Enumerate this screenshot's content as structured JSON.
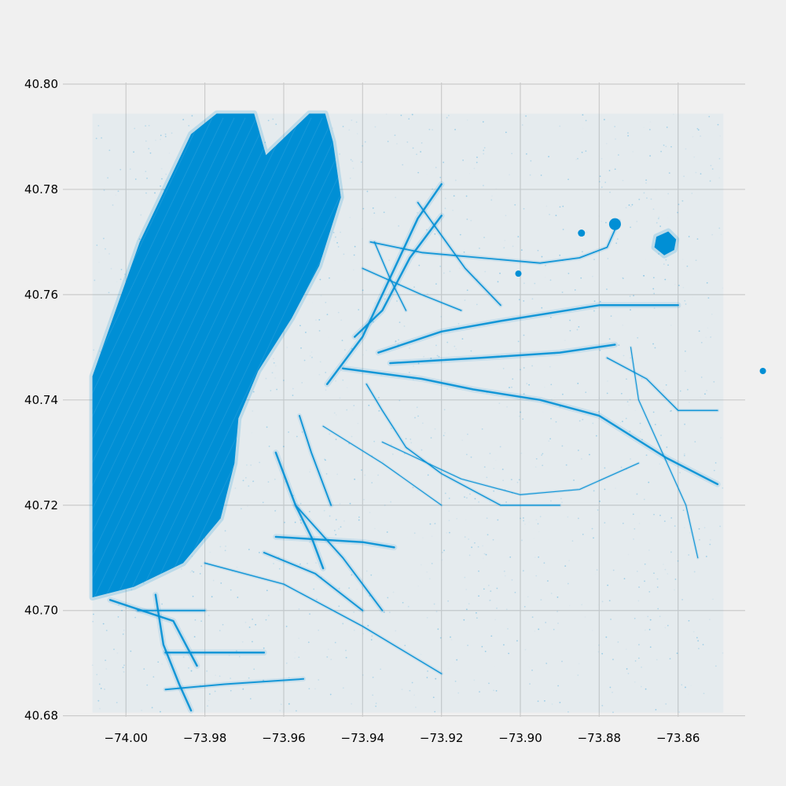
{
  "chart_data": {
    "type": "scatter",
    "title": "",
    "xlabel": "",
    "ylabel": "",
    "xlim": [
      -74.0085,
      -73.8485
    ],
    "ylim": [
      40.6806,
      40.7944
    ],
    "axes_xlim": [
      -74.016,
      -73.843
    ],
    "axes_ylim": [
      40.6798,
      40.8003
    ],
    "grid": true,
    "legend": "none",
    "point_color": "#008fd5",
    "background": "#f0f0f0",
    "grid_color": "#cbcbcb",
    "xticks": [
      {
        "value": -74.0,
        "label": "−74.00"
      },
      {
        "value": -73.98,
        "label": "−73.98"
      },
      {
        "value": -73.96,
        "label": "−73.96"
      },
      {
        "value": -73.94,
        "label": "−73.94"
      },
      {
        "value": -73.92,
        "label": "−73.92"
      },
      {
        "value": -73.9,
        "label": "−73.90"
      },
      {
        "value": -73.88,
        "label": "−73.88"
      },
      {
        "value": -73.86,
        "label": "−73.86"
      }
    ],
    "yticks": [
      {
        "value": 40.68,
        "label": "40.68"
      },
      {
        "value": 40.7,
        "label": "40.70"
      },
      {
        "value": 40.72,
        "label": "40.72"
      },
      {
        "value": 40.74,
        "label": "40.74"
      },
      {
        "value": 40.76,
        "label": "40.76"
      },
      {
        "value": 40.78,
        "label": "40.78"
      },
      {
        "value": 40.8,
        "label": "40.80"
      }
    ],
    "dense_regions": [
      {
        "name": "manhattan",
        "polygon": [
          [
            -74.0085,
            40.7445
          ],
          [
            -73.9965,
            40.77
          ],
          [
            -73.9835,
            40.7905
          ],
          [
            -73.977,
            40.7944
          ],
          [
            -73.9675,
            40.7944
          ],
          [
            -73.9645,
            40.7865
          ],
          [
            -73.9535,
            40.7944
          ],
          [
            -73.9495,
            40.7944
          ],
          [
            -73.9475,
            40.789
          ],
          [
            -73.9455,
            40.7785
          ],
          [
            -73.951,
            40.7655
          ],
          [
            -73.958,
            40.7555
          ],
          [
            -73.9665,
            40.7455
          ],
          [
            -73.9715,
            40.7365
          ],
          [
            -73.9725,
            40.728
          ],
          [
            -73.976,
            40.7175
          ],
          [
            -73.9855,
            40.709
          ],
          [
            -73.998,
            40.7045
          ],
          [
            -74.0085,
            40.7025
          ]
        ]
      },
      {
        "name": "laguardia",
        "polygon": [
          [
            -73.8655,
            40.771
          ],
          [
            -73.8625,
            40.772
          ],
          [
            -73.8605,
            40.7705
          ],
          [
            -73.861,
            40.7685
          ],
          [
            -73.8635,
            40.7675
          ],
          [
            -73.866,
            40.769
          ]
        ]
      }
    ],
    "lines": [
      {
        "points": [
          [
            -74.004,
            40.702
          ],
          [
            -73.996,
            40.7
          ],
          [
            -73.988,
            40.698
          ],
          [
            -73.982,
            40.6895
          ]
        ],
        "w": 2.5
      },
      {
        "points": [
          [
            -73.9925,
            40.703
          ],
          [
            -73.9905,
            40.6935
          ],
          [
            -73.9865,
            40.686
          ],
          [
            -73.9835,
            40.681
          ]
        ],
        "w": 2.5
      },
      {
        "points": [
          [
            -73.99,
            40.692
          ],
          [
            -73.978,
            40.692
          ],
          [
            -73.965,
            40.692
          ]
        ],
        "w": 2.5
      },
      {
        "points": [
          [
            -73.99,
            40.685
          ],
          [
            -73.975,
            40.686
          ],
          [
            -73.955,
            40.687
          ]
        ],
        "w": 2
      },
      {
        "points": [
          [
            -73.997,
            40.7
          ],
          [
            -73.98,
            40.7
          ]
        ],
        "w": 2
      },
      {
        "points": [
          [
            -73.98,
            40.709
          ],
          [
            -73.96,
            40.705
          ],
          [
            -73.94,
            40.697
          ],
          [
            -73.92,
            40.688
          ]
        ],
        "w": 1.5
      },
      {
        "points": [
          [
            -73.962,
            40.73
          ],
          [
            -73.957,
            40.72
          ],
          [
            -73.953,
            40.714
          ],
          [
            -73.95,
            40.708
          ]
        ],
        "w": 2.5
      },
      {
        "points": [
          [
            -73.962,
            40.714
          ],
          [
            -73.94,
            40.713
          ],
          [
            -73.932,
            40.712
          ]
        ],
        "w": 2.5
      },
      {
        "points": [
          [
            -73.957,
            40.72
          ],
          [
            -73.945,
            40.71
          ],
          [
            -73.935,
            40.7
          ]
        ],
        "w": 2
      },
      {
        "points": [
          [
            -73.965,
            40.711
          ],
          [
            -73.952,
            40.707
          ],
          [
            -73.94,
            40.7
          ]
        ],
        "w": 2
      },
      {
        "points": [
          [
            -73.956,
            40.737
          ],
          [
            -73.953,
            40.73
          ],
          [
            -73.948,
            40.72
          ]
        ],
        "w": 2
      },
      {
        "points": [
          [
            -73.942,
            40.752
          ],
          [
            -73.935,
            40.757
          ],
          [
            -73.928,
            40.767
          ],
          [
            -73.92,
            40.775
          ]
        ],
        "w": 2.5
      },
      {
        "points": [
          [
            -73.949,
            40.743
          ],
          [
            -73.94,
            40.752
          ],
          [
            -73.926,
            40.7745
          ],
          [
            -73.92,
            40.781
          ]
        ],
        "w": 2.5
      },
      {
        "points": [
          [
            -73.939,
            40.743
          ],
          [
            -73.935,
            40.738
          ],
          [
            -73.929,
            40.731
          ],
          [
            -73.92,
            40.726
          ],
          [
            -73.905,
            40.72
          ],
          [
            -73.89,
            40.72
          ]
        ],
        "w": 1.5
      },
      {
        "points": [
          [
            -73.936,
            40.749
          ],
          [
            -73.92,
            40.753
          ],
          [
            -73.905,
            40.755
          ],
          [
            -73.88,
            40.758
          ],
          [
            -73.86,
            40.758
          ]
        ],
        "w": 2.5
      },
      {
        "points": [
          [
            -73.945,
            40.746
          ],
          [
            -73.925,
            40.744
          ],
          [
            -73.912,
            40.742
          ],
          [
            -73.895,
            40.74
          ],
          [
            -73.88,
            40.737
          ],
          [
            -73.863,
            40.729
          ],
          [
            -73.85,
            40.724
          ]
        ],
        "w": 2.5
      },
      {
        "points": [
          [
            -73.933,
            40.747
          ],
          [
            -73.91,
            40.748
          ],
          [
            -73.89,
            40.749
          ],
          [
            -73.876,
            40.7505
          ]
        ],
        "w": 2.5
      },
      {
        "points": [
          [
            -73.938,
            40.77
          ],
          [
            -73.925,
            40.768
          ],
          [
            -73.91,
            40.767
          ],
          [
            -73.895,
            40.766
          ],
          [
            -73.885,
            40.767
          ],
          [
            -73.878,
            40.769
          ],
          [
            -73.875,
            40.774
          ]
        ],
        "w": 1.8
      },
      {
        "points": [
          [
            -73.926,
            40.7775
          ],
          [
            -73.914,
            40.765
          ],
          [
            -73.905,
            40.758
          ]
        ],
        "w": 1.8
      },
      {
        "points": [
          [
            -73.878,
            40.748
          ],
          [
            -73.868,
            40.744
          ],
          [
            -73.86,
            40.738
          ],
          [
            -73.85,
            40.738
          ]
        ],
        "w": 1.5
      },
      {
        "points": [
          [
            -73.872,
            40.75
          ],
          [
            -73.87,
            40.74
          ],
          [
            -73.864,
            40.73
          ],
          [
            -73.858,
            40.72
          ],
          [
            -73.855,
            40.71
          ]
        ],
        "w": 1.2
      },
      {
        "points": [
          [
            -73.937,
            40.77
          ],
          [
            -73.933,
            40.763
          ],
          [
            -73.929,
            40.757
          ]
        ],
        "w": 1.5
      },
      {
        "points": [
          [
            -73.95,
            40.735
          ],
          [
            -73.935,
            40.728
          ],
          [
            -73.92,
            40.72
          ]
        ],
        "w": 1.2
      },
      {
        "points": [
          [
            -73.935,
            40.732
          ],
          [
            -73.915,
            40.725
          ],
          [
            -73.9,
            40.722
          ],
          [
            -73.885,
            40.723
          ],
          [
            -73.87,
            40.728
          ]
        ],
        "w": 1.2
      },
      {
        "points": [
          [
            -73.94,
            40.765
          ],
          [
            -73.925,
            40.76
          ],
          [
            -73.915,
            40.757
          ]
        ],
        "w": 1.5
      }
    ],
    "blobs": [
      {
        "center": [
          -73.8845,
          40.7717
        ],
        "r": 0.0009
      },
      {
        "center": [
          -73.9005,
          40.764
        ],
        "r": 0.0008
      },
      {
        "center": [
          -73.876,
          40.7734
        ],
        "r": 0.0015
      },
      {
        "center": [
          -73.8385,
          40.7455
        ],
        "r": 0.0008
      }
    ]
  }
}
